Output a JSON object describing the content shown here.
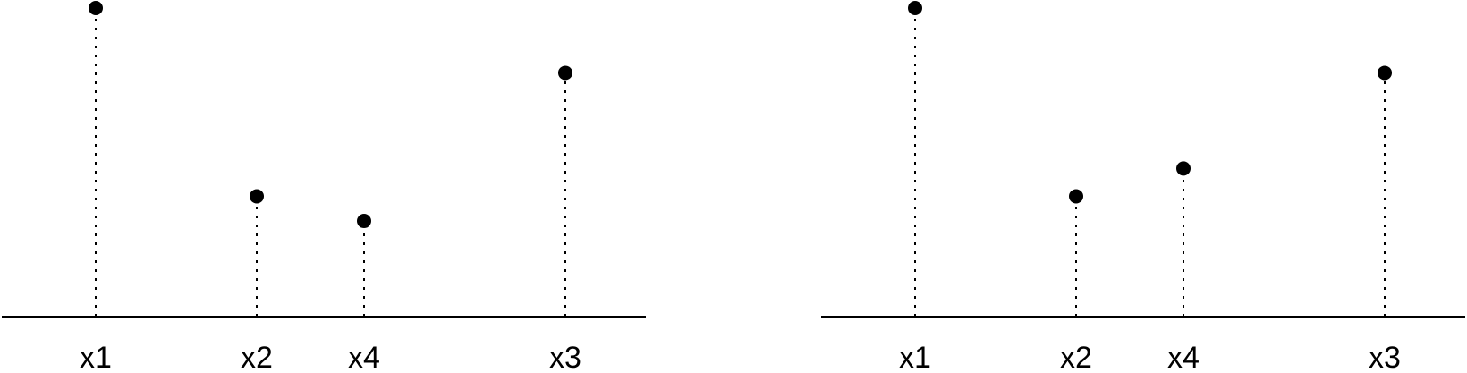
{
  "panels": [
    {
      "id": "left",
      "points": [
        {
          "label": "x1",
          "value": 1.0
        },
        {
          "label": "x2",
          "value": 0.39
        },
        {
          "label": "x4",
          "value": 0.31
        },
        {
          "label": "x3",
          "value": 0.79
        }
      ]
    },
    {
      "id": "right",
      "points": [
        {
          "label": "x1",
          "value": 1.0
        },
        {
          "label": "x2",
          "value": 0.39
        },
        {
          "label": "x4",
          "value": 0.48
        },
        {
          "label": "x3",
          "value": 0.79
        }
      ]
    }
  ]
}
